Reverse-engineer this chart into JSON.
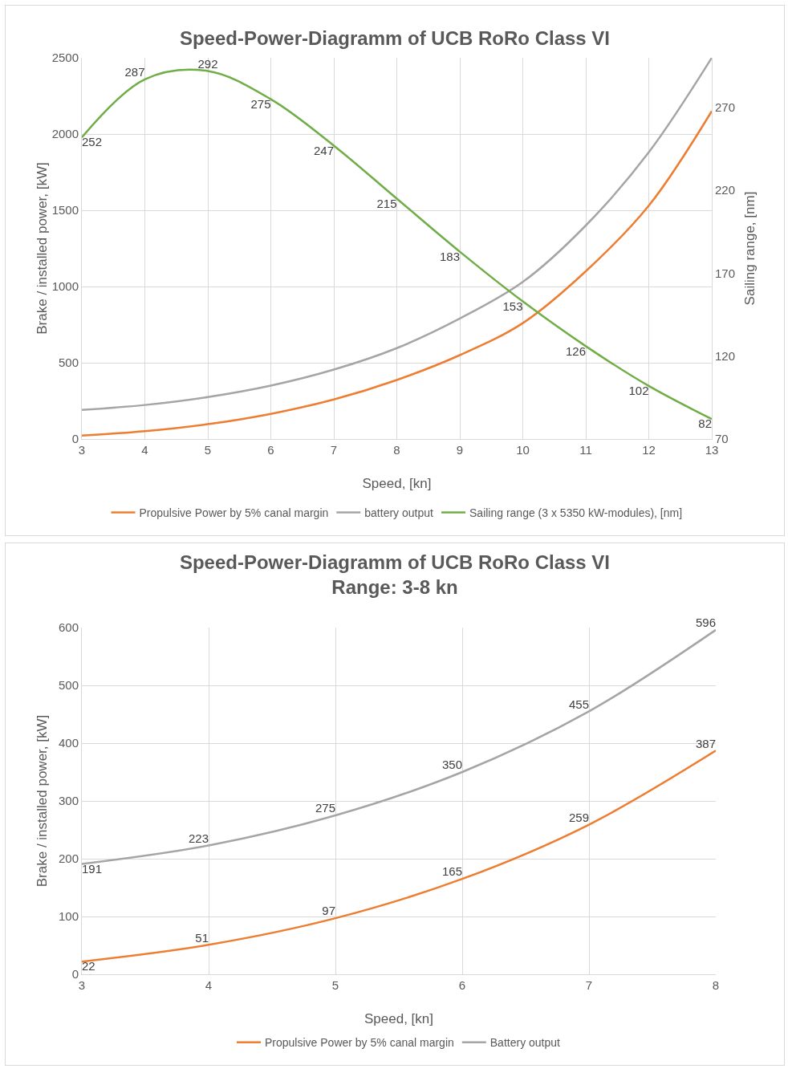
{
  "chart_data": [
    {
      "type": "line",
      "title": "Speed-Power-Diagramm of UCB RoRo Class VI",
      "xlabel": "Speed, [kn]",
      "ylabel": "Brake / installed power, [kW]",
      "y2label": "Sailing range, [nm]",
      "x": [
        3,
        4,
        5,
        6,
        7,
        8,
        9,
        10,
        11,
        12,
        13
      ],
      "xlim": [
        3,
        13
      ],
      "xticks": [
        3,
        4,
        5,
        6,
        7,
        8,
        9,
        10,
        11,
        12,
        13
      ],
      "ylim": [
        0,
        2500
      ],
      "yticks": [
        0,
        500,
        1000,
        1500,
        2000,
        2500
      ],
      "y2lim": [
        70,
        300
      ],
      "y2ticks": [
        70,
        120,
        170,
        220,
        270
      ],
      "grid": true,
      "legend": "bottom",
      "series": [
        {
          "name": "Propulsive Power by 5% canal margin",
          "color": "#ed7d31",
          "values": [
            22,
            51,
            97,
            165,
            259,
            387,
            550,
            760,
            1100,
            1530,
            2150
          ]
        },
        {
          "name": "battery output",
          "color": "#a5a5a5",
          "values": [
            191,
            223,
            275,
            350,
            455,
            596,
            790,
            1030,
            1400,
            1880,
            2500
          ]
        },
        {
          "name": "Sailing range (3 x 5350 kW-modules), [nm]",
          "color": "#70ad47",
          "axis": "y2",
          "values": [
            252,
            287,
            292,
            275,
            247,
            215,
            183,
            153,
            126,
            102,
            82
          ],
          "value_labels": [
            "252",
            "287",
            "292",
            "275",
            "247",
            "215",
            "183",
            "153",
            "126",
            "102",
            "82"
          ]
        }
      ]
    },
    {
      "type": "line",
      "title": "Speed-Power-Diagramm of UCB RoRo Class VI",
      "subtitle": "Range: 3-8 kn",
      "xlabel": "Speed, [kn]",
      "ylabel": "Brake / installed power, [kW]",
      "x": [
        3,
        4,
        5,
        6,
        7,
        8
      ],
      "xlim": [
        3,
        8
      ],
      "xticks": [
        3,
        4,
        5,
        6,
        7,
        8
      ],
      "ylim": [
        0,
        600
      ],
      "yticks": [
        0,
        100,
        200,
        300,
        400,
        500,
        600
      ],
      "grid": true,
      "legend": "bottom",
      "series": [
        {
          "name": "Propulsive Power by 5% canal margin",
          "color": "#ed7d31",
          "values": [
            22,
            51,
            97,
            165,
            259,
            387
          ],
          "value_labels": [
            "22",
            "51",
            "97",
            "165",
            "259",
            "387"
          ]
        },
        {
          "name": "Battery output",
          "color": "#a5a5a5",
          "values": [
            191,
            223,
            275,
            350,
            455,
            596
          ],
          "value_labels": [
            "191",
            "223",
            "275",
            "350",
            "455",
            "596"
          ]
        }
      ]
    }
  ]
}
